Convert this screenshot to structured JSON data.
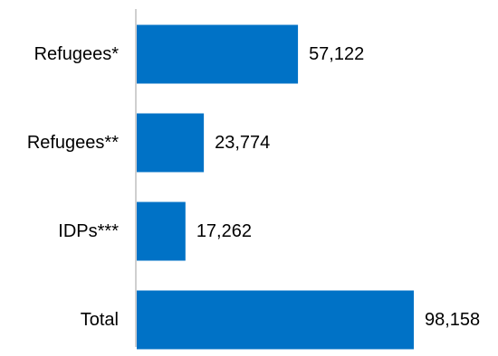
{
  "chart_data": {
    "type": "bar",
    "orientation": "horizontal",
    "title": "",
    "xlabel": "",
    "ylabel": "",
    "categories": [
      "Refugees*",
      "Refugees**",
      "IDPs***",
      "Total"
    ],
    "values": [
      57122,
      23774,
      17262,
      98158
    ],
    "value_labels": [
      "57,122",
      "23,774",
      "17,262",
      "98,158"
    ],
    "xlim": [
      0,
      100000
    ],
    "grid": false,
    "legend": "none",
    "colors": {
      "bar": "#0072c6",
      "axis": "#bfbfbf",
      "text": "#000000"
    }
  }
}
